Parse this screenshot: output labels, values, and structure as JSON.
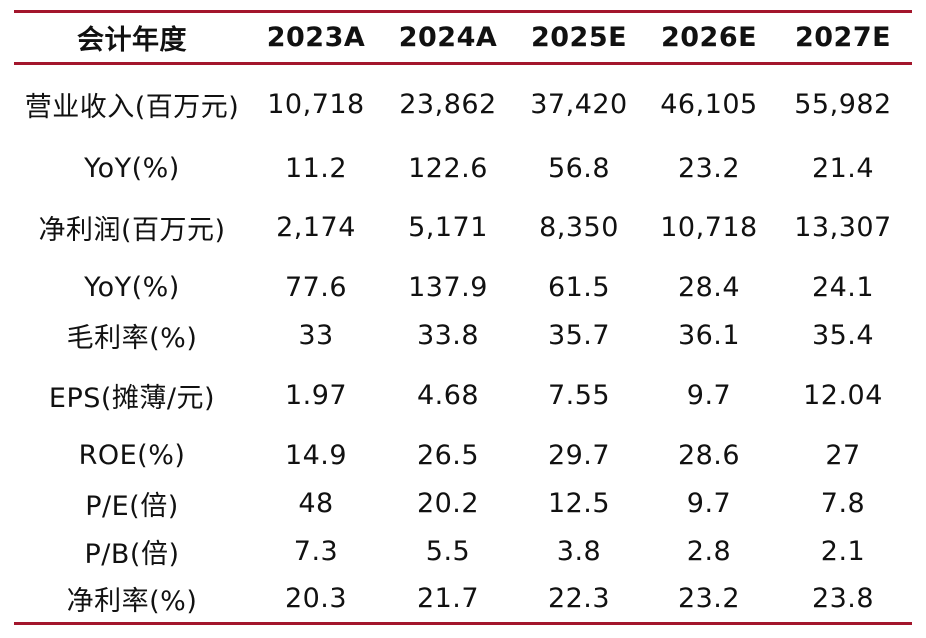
{
  "table": {
    "headers": [
      "会计年度",
      "2023A",
      "2024A",
      "2025E",
      "2026E",
      "2027E"
    ],
    "rows": [
      {
        "label": "营业收入(百万元)",
        "values": [
          "10,718",
          "23,862",
          "37,420",
          "46,105",
          "55,982"
        ]
      },
      {
        "label": "YoY(%)",
        "values": [
          "11.2",
          "122.6",
          "56.8",
          "23.2",
          "21.4"
        ]
      },
      {
        "label": "净利润(百万元)",
        "values": [
          "2,174",
          "5,171",
          "8,350",
          "10,718",
          "13,307"
        ]
      },
      {
        "label": "YoY(%)",
        "values": [
          "77.6",
          "137.9",
          "61.5",
          "28.4",
          "24.1"
        ]
      },
      {
        "label": "毛利率(%)",
        "values": [
          "33",
          "33.8",
          "35.7",
          "36.1",
          "35.4"
        ]
      },
      {
        "label": "EPS(摊薄/元)",
        "values": [
          "1.97",
          "4.68",
          "7.55",
          "9.7",
          "12.04"
        ]
      },
      {
        "label": "ROE(%)",
        "values": [
          "14.9",
          "26.5",
          "29.7",
          "28.6",
          "27"
        ]
      },
      {
        "label": "P/E(倍)",
        "values": [
          "48",
          "20.2",
          "12.5",
          "9.7",
          "7.8"
        ]
      },
      {
        "label": "P/B(倍)",
        "values": [
          "7.3",
          "5.5",
          "3.8",
          "2.8",
          "2.1"
        ]
      },
      {
        "label": "净利率(%)",
        "values": [
          "20.3",
          "21.7",
          "22.3",
          "23.2",
          "23.8"
        ]
      }
    ]
  },
  "colors": {
    "rule": "#a3162c",
    "text": "#111111",
    "background": "#ffffff"
  }
}
